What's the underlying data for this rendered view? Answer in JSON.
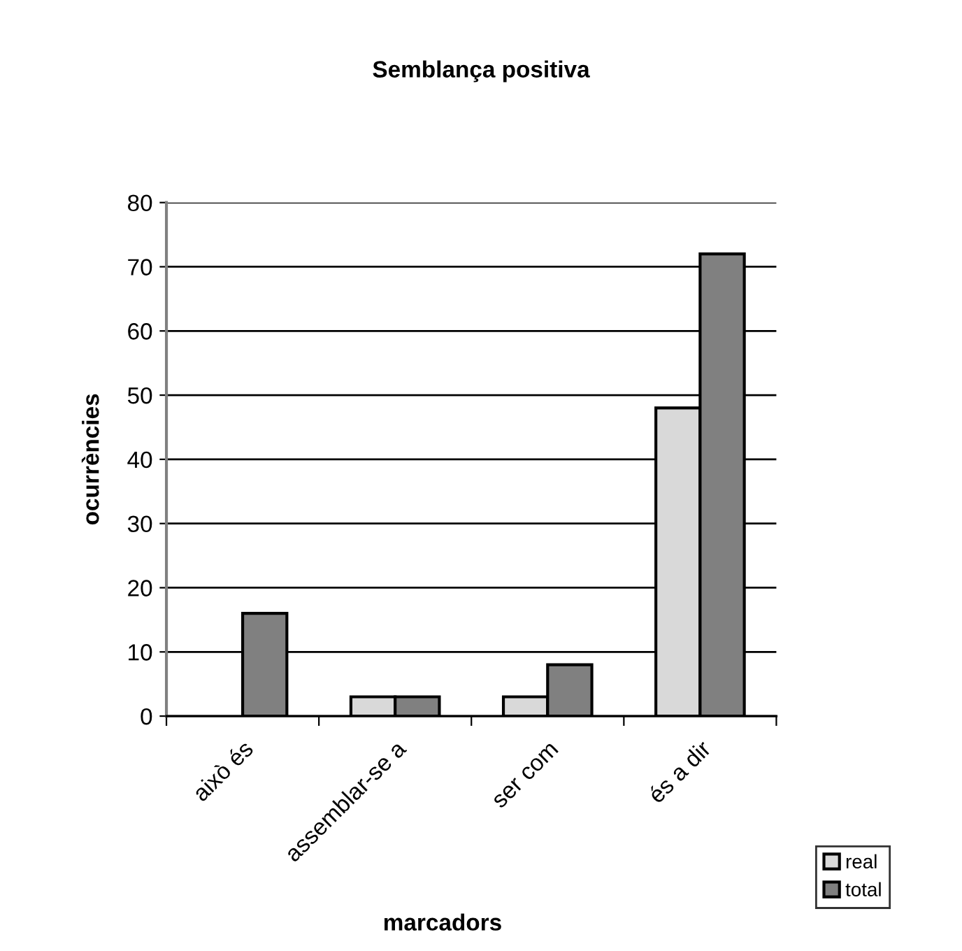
{
  "chart_data": {
    "type": "bar",
    "title": "Semblança positiva",
    "xlabel": "marcadors",
    "ylabel": "ocurrències",
    "categories": [
      "això és",
      "assemblar-se a",
      "ser com",
      "és a dir"
    ],
    "series": [
      {
        "name": "real",
        "color": "#d9d9d9",
        "values": [
          null,
          3,
          3,
          48
        ]
      },
      {
        "name": "total",
        "color": "#808080",
        "values": [
          16,
          3,
          8,
          72
        ]
      }
    ],
    "ylim": [
      0,
      80
    ],
    "yticks": [
      0,
      10,
      20,
      30,
      40,
      50,
      60,
      70,
      80
    ],
    "grid": "y",
    "legend": "bottom right"
  }
}
